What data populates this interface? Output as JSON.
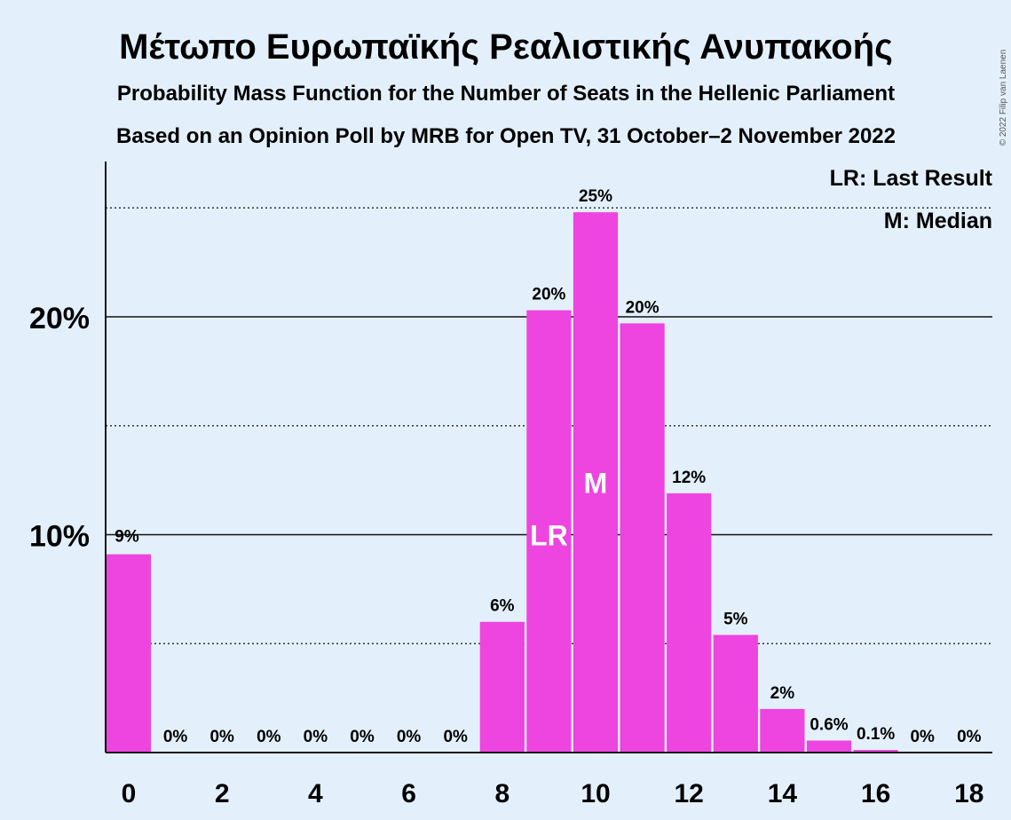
{
  "title": "Μέτωπο Ευρωπαϊκής Ρεαλιστικής Ανυπακοής",
  "subtitle1": "Probability Mass Function for the Number of Seats in the Hellenic Parliament",
  "subtitle2": "Based on an Opinion Poll by MRB for Open TV, 31 October–2 November 2022",
  "copyright": "© 2022 Filip van Laenen",
  "legend": {
    "last_result": "LR: Last Result",
    "median": "M: Median"
  },
  "colors": {
    "background": "#e3f0fc",
    "bar": "#ee44e0",
    "text": "#1a1a1a"
  },
  "chart_data": {
    "type": "bar",
    "x": [
      0,
      1,
      2,
      3,
      4,
      5,
      6,
      7,
      8,
      9,
      10,
      11,
      12,
      13,
      14,
      15,
      16,
      17,
      18
    ],
    "values": [
      9.1,
      0,
      0,
      0,
      0,
      0,
      0,
      0,
      6.0,
      20.3,
      24.8,
      19.7,
      11.9,
      5.4,
      2.0,
      0.55,
      0.12,
      0,
      0
    ],
    "labels": [
      "9%",
      "0%",
      "0%",
      "0%",
      "0%",
      "0%",
      "0%",
      "0%",
      "6%",
      "20%",
      "25%",
      "20%",
      "12%",
      "5%",
      "2%",
      "0.6%",
      "0.1%",
      "0%",
      "0%"
    ],
    "xticks": [
      "0",
      "2",
      "4",
      "6",
      "8",
      "10",
      "12",
      "14",
      "16",
      "18"
    ],
    "yticks": [
      {
        "value": 10,
        "label": "10%"
      },
      {
        "value": 20,
        "label": "20%"
      }
    ],
    "dotted_gridlines": [
      5,
      15,
      25
    ],
    "ylim": [
      0,
      27
    ],
    "last_result": 9,
    "median": 10,
    "last_result_marker": "LR",
    "median_marker": "M"
  }
}
